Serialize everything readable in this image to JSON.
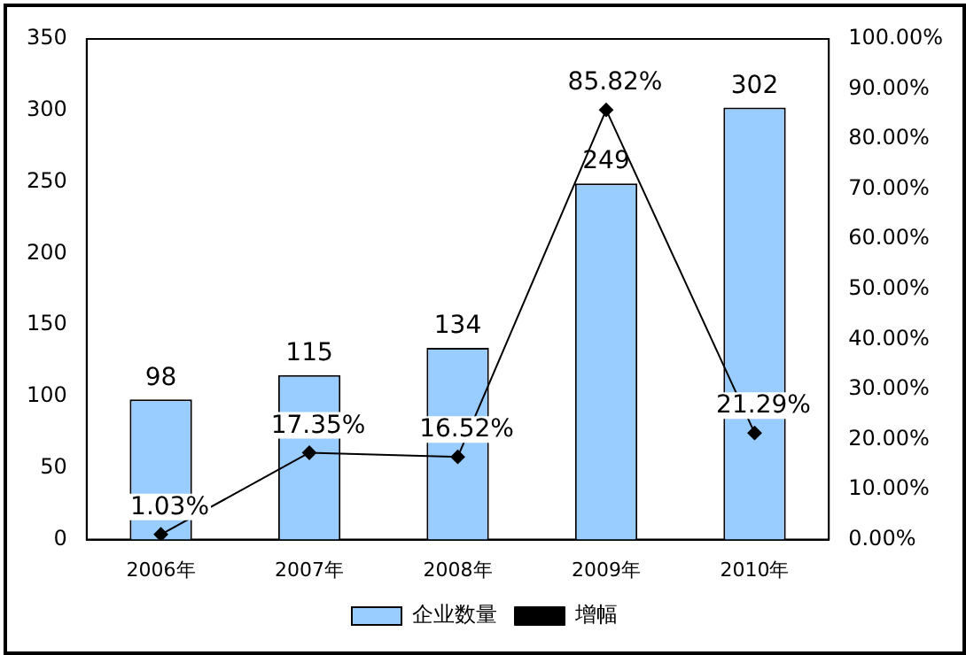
{
  "chart_data": {
    "type": "bar",
    "categories": [
      "2006年",
      "2007年",
      "2008年",
      "2009年",
      "2010年"
    ],
    "series": [
      {
        "name": "企业数量",
        "color": "#99ccff",
        "values": [
          98,
          115,
          134,
          249,
          302
        ],
        "value_labels": [
          "98",
          "115",
          "134",
          "249",
          "302"
        ]
      },
      {
        "name": "增幅",
        "type": "line",
        "axis": "y2",
        "color": "#000000",
        "values": [
          1.03,
          17.35,
          16.52,
          85.82,
          21.29
        ],
        "value_labels": [
          "1.03%",
          "17.35%",
          "16.52%",
          "85.82%",
          "21.29%"
        ]
      }
    ],
    "ylim": [
      0,
      350
    ],
    "yticks": [
      0,
      50,
      100,
      150,
      200,
      250,
      300,
      350
    ],
    "y2lim": [
      0,
      100
    ],
    "y2ticks": [
      {
        "value": 0,
        "label": "0.00%"
      },
      {
        "value": 10,
        "label": "10.00%"
      },
      {
        "value": 20,
        "label": "20.00%"
      },
      {
        "value": 30,
        "label": "30.00%"
      },
      {
        "value": 40,
        "label": "40.00%"
      },
      {
        "value": 50,
        "label": "50.00%"
      },
      {
        "value": 60,
        "label": "60.00%"
      },
      {
        "value": 70,
        "label": "70.00%"
      },
      {
        "value": 80,
        "label": "80.00%"
      },
      {
        "value": 90,
        "label": "90.00%"
      },
      {
        "value": 100,
        "label": "100.00%"
      }
    ],
    "grid": false,
    "legend": "bottom",
    "marker": "diamond",
    "line_style": "solid"
  }
}
